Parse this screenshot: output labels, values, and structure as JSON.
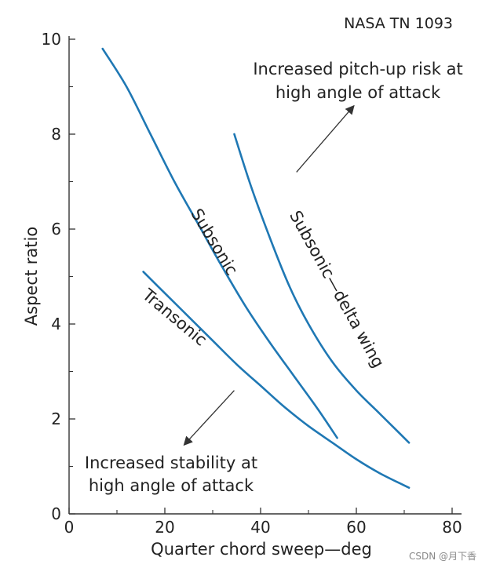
{
  "source_label": "NASA TN 1093",
  "watermark": "CSDN @月下香",
  "colors": {
    "curve": "#1f78b4",
    "axis": "#333333",
    "text": "#222222"
  },
  "chart_data": {
    "type": "line",
    "title": "",
    "xlabel": "Quarter chord sweep—deg",
    "ylabel": "Aspect ratio",
    "xlim": [
      0,
      80
    ],
    "ylim": [
      0,
      10
    ],
    "x_ticks": [
      0,
      20,
      40,
      60,
      80
    ],
    "y_ticks": [
      0,
      2,
      4,
      6,
      8,
      10
    ],
    "x_tick_labels": [
      "0",
      "20",
      "40",
      "60",
      "80"
    ],
    "y_tick_labels": [
      "0",
      "2",
      "4",
      "6",
      "8",
      "10"
    ],
    "series": [
      {
        "name": "Subsonic",
        "label": "Subsonic",
        "points": [
          [
            7,
            9.8
          ],
          [
            12,
            9.0
          ],
          [
            17,
            8.0
          ],
          [
            22,
            7.0
          ],
          [
            27,
            6.1
          ],
          [
            32,
            5.2
          ],
          [
            37,
            4.35
          ],
          [
            42,
            3.6
          ],
          [
            47,
            2.9
          ],
          [
            52,
            2.2
          ],
          [
            56,
            1.6
          ]
        ]
      },
      {
        "name": "Transonic",
        "label": "Transonic",
        "points": [
          [
            15.5,
            5.1
          ],
          [
            20,
            4.65
          ],
          [
            25,
            4.15
          ],
          [
            30,
            3.65
          ],
          [
            35,
            3.15
          ],
          [
            40,
            2.7
          ],
          [
            45,
            2.25
          ],
          [
            50,
            1.85
          ],
          [
            55,
            1.5
          ],
          [
            60,
            1.15
          ],
          [
            65,
            0.85
          ],
          [
            71,
            0.55
          ]
        ]
      },
      {
        "name": "Subsonic—delta wing",
        "label": "Subsonic—delta wing",
        "points": [
          [
            34.5,
            8.0
          ],
          [
            38,
            6.9
          ],
          [
            42,
            5.8
          ],
          [
            46,
            4.8
          ],
          [
            50,
            4.0
          ],
          [
            55,
            3.2
          ],
          [
            60,
            2.6
          ],
          [
            65,
            2.1
          ],
          [
            71,
            1.5
          ]
        ]
      }
    ],
    "annotations": [
      {
        "text_lines": [
          "Increased pitch-up risk at",
          "high angle of attack"
        ],
        "arrow_from": [
          47.5,
          7.2
        ],
        "arrow_to": [
          59.5,
          8.6
        ]
      },
      {
        "text_lines": [
          "Increased stability at",
          "high angle of attack"
        ],
        "arrow_from": [
          34.5,
          2.6
        ],
        "arrow_to": [
          24,
          1.45
        ]
      }
    ]
  }
}
